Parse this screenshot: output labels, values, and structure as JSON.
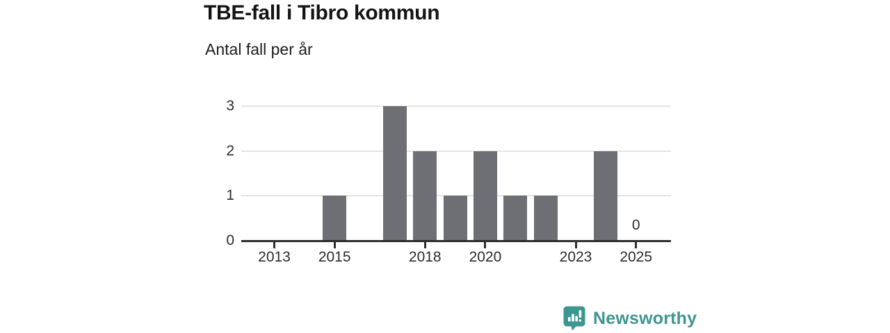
{
  "header": {
    "title": "TBE-fall i Tibro kommun",
    "subtitle": "Antal fall per år"
  },
  "chart_data": {
    "type": "bar",
    "title": "TBE-fall i Tibro kommun",
    "subtitle": "Antal fall per år",
    "categories": [
      2013,
      2014,
      2015,
      2016,
      2017,
      2018,
      2019,
      2020,
      2021,
      2022,
      2023,
      2024,
      2025
    ],
    "values": [
      0,
      0,
      1,
      0,
      3,
      2,
      1,
      2,
      1,
      1,
      0,
      2,
      0
    ],
    "xlabel": "",
    "ylabel": "",
    "ylim": [
      0,
      3
    ],
    "yticks": [
      0,
      1,
      2,
      3
    ],
    "xticks": [
      2013,
      2015,
      2018,
      2020,
      2023,
      2025
    ],
    "grid": true,
    "legend": false,
    "annotations": [
      {
        "category": 2025,
        "label": "0"
      }
    ],
    "colors": {
      "bar": "#6e6e75",
      "axis": "#2d2d2d",
      "gridline": "#e3e3e3",
      "tick_text": "#2b2b2b"
    }
  },
  "footer": {
    "brand": "Newsworthy",
    "brand_color": "#3d968f",
    "logo_icon": "newsworthy-speech-bubble-bar-chart-icon"
  }
}
